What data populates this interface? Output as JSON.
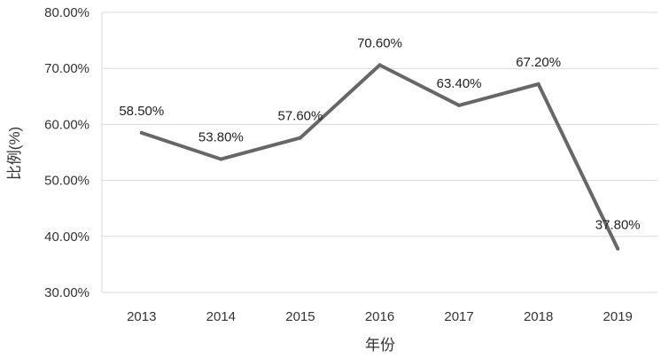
{
  "chart_data": {
    "type": "line",
    "x": [
      "2013",
      "2014",
      "2015",
      "2016",
      "2017",
      "2018",
      "2019"
    ],
    "series": [
      {
        "values": [
          58.5,
          53.8,
          57.6,
          70.6,
          63.4,
          67.2,
          37.8
        ],
        "data_labels": [
          "58.50%",
          "53.80%",
          "57.60%",
          "70.60%",
          "63.40%",
          "67.20%",
          "37.80%"
        ]
      }
    ],
    "xlabel": "年份",
    "ylabel": "比例(%)",
    "ylim": [
      30,
      80
    ],
    "yticks": [
      30,
      40,
      50,
      60,
      70,
      80
    ],
    "ytick_labels": [
      "30.00%",
      "40.00%",
      "50.00%",
      "60.00%",
      "70.00%",
      "80.00%"
    ],
    "grid": true,
    "line_color": "#676767",
    "grid_color": "#d9d9d9"
  }
}
